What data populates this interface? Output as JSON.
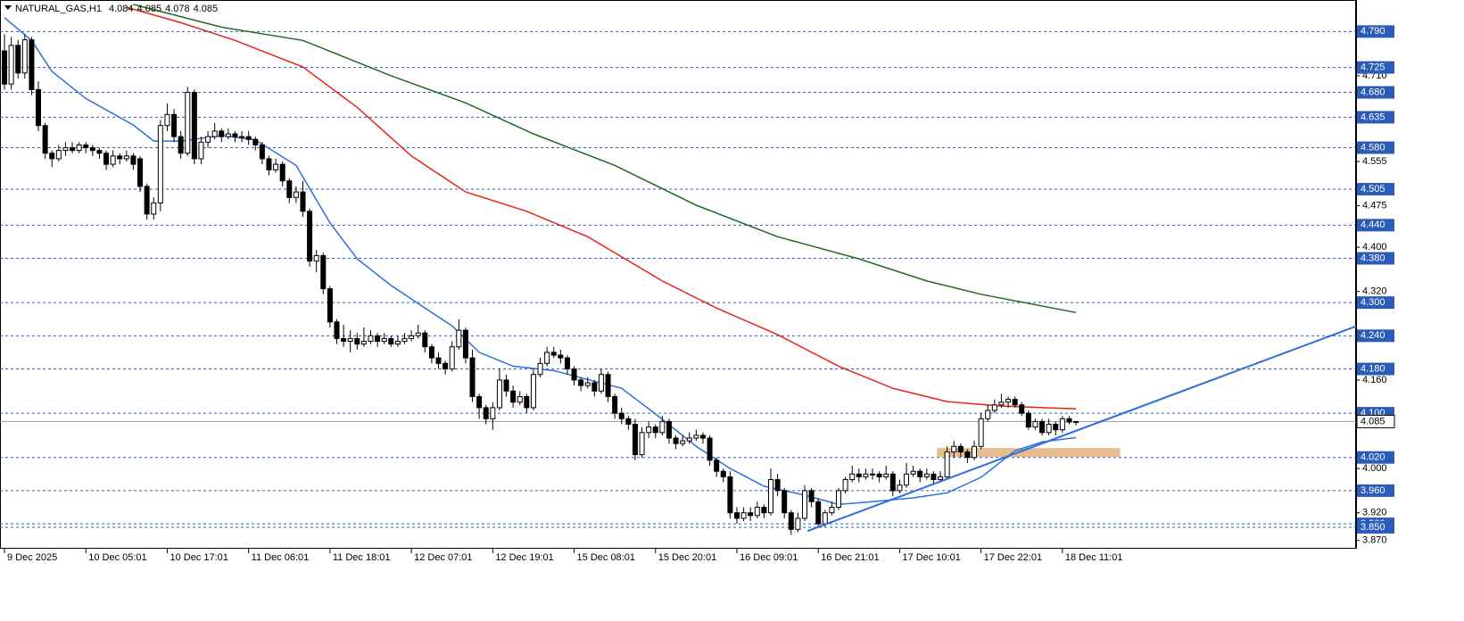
{
  "chart_data": {
    "type": "candlestick",
    "title": "NATURAL_GAS,H1",
    "up_color": "#ffffff",
    "down_color": "#000000",
    "level_color": "#2b5cb8",
    "xlim": [
      -0.66,
      199.3
    ],
    "ylim": [
      3.855,
      4.847
    ],
    "xticks": [
      {
        "value": 0,
        "label": "9 Dec 2025"
      },
      {
        "value": 12,
        "label": "10 Dec 05:01"
      },
      {
        "value": 24,
        "label": "10 Dec 17:01"
      },
      {
        "value": 36,
        "label": "11 Dec 06:01"
      },
      {
        "value": 48,
        "label": "11 Dec 18:01"
      },
      {
        "value": 60,
        "label": "12 Dec 07:01"
      },
      {
        "value": 72,
        "label": "12 Dec 19:01"
      },
      {
        "value": 84,
        "label": "15 Dec 08:01"
      },
      {
        "value": 96,
        "label": "15 Dec 20:01"
      },
      {
        "value": 108,
        "label": "16 Dec 09:01"
      },
      {
        "value": 120,
        "label": "16 Dec 21:01"
      },
      {
        "value": 132,
        "label": "17 Dec 10:01"
      },
      {
        "value": 144,
        "label": "17 Dec 22:01"
      },
      {
        "value": 156,
        "label": "18 Dec 11:01"
      }
    ],
    "yticks": [
      {
        "value": 4.71,
        "label": "4.710"
      },
      4.555,
      4.475,
      {
        "value": 4.4,
        "label": "4.400"
      },
      {
        "value": 4.32,
        "label": "4.320"
      },
      {
        "value": 4.16,
        "label": "4.160"
      },
      {
        "value": 4,
        "label": "4.000"
      },
      {
        "value": 3.92,
        "label": "3.920"
      },
      {
        "value": 3.87,
        "label": "3.870"
      }
    ],
    "levels": [
      {
        "value": 4.79,
        "label": "4.790"
      },
      4.725,
      {
        "value": 4.68,
        "label": "4.680"
      },
      4.635,
      {
        "value": 4.58,
        "label": "4.580"
      },
      4.505,
      {
        "value": 4.44,
        "label": "4.440"
      },
      {
        "value": 4.38,
        "label": "4.380"
      },
      {
        "value": 4.3,
        "label": "4.300"
      },
      {
        "value": 4.24,
        "label": "4.240"
      },
      {
        "value": 4.18,
        "label": "4.180"
      },
      {
        "value": 4.1,
        "label": "4.100"
      },
      {
        "value": 4.02,
        "label": "4.020"
      },
      {
        "value": 3.96,
        "label": "3.960"
      },
      {
        "value": 3.9,
        "label": "3.900"
      },
      {
        "value": 3.85,
        "label": "3.850"
      }
    ],
    "candles": [
      [
        4.755,
        4.785,
        4.685,
        4.695
      ],
      [
        4.695,
        4.78,
        4.685,
        4.765
      ],
      [
        4.765,
        4.775,
        4.705,
        4.715
      ],
      [
        4.715,
        4.785,
        4.705,
        4.775
      ],
      [
        4.775,
        4.78,
        4.675,
        4.685
      ],
      [
        4.685,
        4.7,
        4.61,
        4.62
      ],
      [
        4.62,
        4.625,
        4.56,
        4.57
      ],
      [
        4.57,
        4.575,
        4.545,
        4.56
      ],
      [
        4.56,
        4.585,
        4.555,
        4.575
      ],
      [
        4.575,
        4.59,
        4.565,
        4.58
      ],
      [
        4.58,
        4.59,
        4.57,
        4.575
      ],
      [
        4.575,
        4.59,
        4.57,
        4.585
      ],
      [
        4.585,
        4.59,
        4.57,
        4.58
      ],
      [
        4.58,
        4.585,
        4.565,
        4.575
      ],
      [
        4.575,
        4.58,
        4.56,
        4.57
      ],
      [
        4.57,
        4.575,
        4.54,
        4.55
      ],
      [
        4.55,
        4.575,
        4.545,
        4.565
      ],
      [
        4.565,
        4.57,
        4.55,
        4.56
      ],
      [
        4.56,
        4.575,
        4.555,
        4.565
      ],
      [
        4.565,
        4.57,
        4.54,
        4.55
      ],
      [
        4.56,
        4.565,
        4.5,
        4.51
      ],
      [
        4.51,
        4.515,
        4.45,
        4.46
      ],
      [
        4.46,
        4.49,
        4.45,
        4.48
      ],
      [
        4.48,
        4.63,
        4.465,
        4.62
      ],
      [
        4.62,
        4.66,
        4.61,
        4.64
      ],
      [
        4.64,
        4.65,
        4.59,
        4.6
      ],
      [
        4.6,
        4.61,
        4.56,
        4.57
      ],
      [
        4.57,
        4.69,
        4.565,
        4.68
      ],
      [
        4.68,
        4.685,
        4.55,
        4.56
      ],
      [
        4.56,
        4.6,
        4.55,
        4.59
      ],
      [
        4.59,
        4.61,
        4.58,
        4.6
      ],
      [
        4.6,
        4.625,
        4.595,
        4.61
      ],
      [
        4.61,
        4.615,
        4.59,
        4.6
      ],
      [
        4.6,
        4.615,
        4.595,
        4.605
      ],
      [
        4.605,
        4.61,
        4.59,
        4.6
      ],
      [
        4.6,
        4.61,
        4.59,
        4.6
      ],
      [
        4.6,
        4.61,
        4.585,
        4.595
      ],
      [
        4.595,
        4.6,
        4.575,
        4.585
      ],
      [
        4.585,
        4.59,
        4.55,
        4.56
      ],
      [
        4.56,
        4.565,
        4.53,
        4.54
      ],
      [
        4.54,
        4.56,
        4.535,
        4.55
      ],
      [
        4.55,
        4.555,
        4.51,
        4.52
      ],
      [
        4.52,
        4.525,
        4.48,
        4.49
      ],
      [
        4.49,
        4.51,
        4.48,
        4.5
      ],
      [
        4.5,
        4.52,
        4.455,
        4.465
      ],
      [
        4.465,
        4.47,
        4.365,
        4.375
      ],
      [
        4.375,
        4.395,
        4.355,
        4.385
      ],
      [
        4.385,
        4.39,
        4.315,
        4.325
      ],
      [
        4.325,
        4.33,
        4.255,
        4.265
      ],
      [
        4.265,
        4.27,
        4.225,
        4.235
      ],
      [
        4.235,
        4.26,
        4.22,
        4.23
      ],
      [
        4.23,
        4.25,
        4.21,
        4.235
      ],
      [
        4.235,
        4.245,
        4.215,
        4.225
      ],
      [
        4.225,
        4.255,
        4.22,
        4.23
      ],
      [
        4.23,
        4.25,
        4.225,
        4.24
      ],
      [
        4.24,
        4.245,
        4.22,
        4.23
      ],
      [
        4.23,
        4.245,
        4.225,
        4.235
      ],
      [
        4.235,
        4.24,
        4.22,
        4.225
      ],
      [
        4.225,
        4.24,
        4.22,
        4.23
      ],
      [
        4.23,
        4.245,
        4.225,
        4.235
      ],
      [
        4.235,
        4.25,
        4.23,
        4.24
      ],
      [
        4.24,
        4.26,
        4.235,
        4.245
      ],
      [
        4.245,
        4.25,
        4.21,
        4.22
      ],
      [
        4.22,
        4.225,
        4.19,
        4.2
      ],
      [
        4.2,
        4.21,
        4.18,
        4.19
      ],
      [
        4.19,
        4.195,
        4.17,
        4.18
      ],
      [
        4.18,
        4.23,
        4.175,
        4.22
      ],
      [
        4.22,
        4.27,
        4.215,
        4.25
      ],
      [
        4.25,
        4.255,
        4.19,
        4.2
      ],
      [
        4.2,
        4.215,
        4.12,
        4.13
      ],
      [
        4.13,
        4.135,
        4.09,
        4.11
      ],
      [
        4.11,
        4.115,
        4.08,
        4.09
      ],
      [
        4.09,
        4.12,
        4.07,
        4.11
      ],
      [
        4.11,
        4.18,
        4.105,
        4.16
      ],
      [
        4.16,
        4.17,
        4.13,
        4.14
      ],
      [
        4.14,
        4.15,
        4.11,
        4.12
      ],
      [
        4.12,
        4.14,
        4.115,
        4.13
      ],
      [
        4.13,
        4.135,
        4.1,
        4.11
      ],
      [
        4.11,
        4.18,
        4.105,
        4.17
      ],
      [
        4.17,
        4.2,
        4.165,
        4.19
      ],
      [
        4.19,
        4.22,
        4.185,
        4.21
      ],
      [
        4.21,
        4.22,
        4.2,
        4.205
      ],
      [
        4.205,
        4.215,
        4.19,
        4.2
      ],
      [
        4.2,
        4.205,
        4.17,
        4.18
      ],
      [
        4.18,
        4.185,
        4.15,
        4.16
      ],
      [
        4.16,
        4.165,
        4.14,
        4.15
      ],
      [
        4.15,
        4.165,
        4.145,
        4.155
      ],
      [
        4.155,
        4.16,
        4.13,
        4.14
      ],
      [
        4.14,
        4.18,
        4.135,
        4.17
      ],
      [
        4.17,
        4.175,
        4.12,
        4.13
      ],
      [
        4.13,
        4.135,
        4.09,
        4.1
      ],
      [
        4.1,
        4.11,
        4.08,
        4.09
      ],
      [
        4.09,
        4.095,
        4.07,
        4.08
      ],
      [
        4.08,
        4.09,
        4.015,
        4.025
      ],
      [
        4.025,
        4.075,
        4.02,
        4.065
      ],
      [
        4.065,
        4.085,
        4.055,
        4.075
      ],
      [
        4.075,
        4.08,
        4.055,
        4.065
      ],
      [
        4.065,
        4.095,
        4.06,
        4.085
      ],
      [
        4.085,
        4.09,
        4.045,
        4.055
      ],
      [
        4.055,
        4.06,
        4.035,
        4.045
      ],
      [
        4.045,
        4.06,
        4.04,
        4.05
      ],
      [
        4.05,
        4.065,
        4.045,
        4.055
      ],
      [
        4.055,
        4.07,
        4.05,
        4.06
      ],
      [
        4.06,
        4.065,
        4.045,
        4.055
      ],
      [
        4.055,
        4.06,
        4.005,
        4.015
      ],
      [
        4.015,
        4.02,
        3.985,
        3.995
      ],
      [
        3.995,
        4.0,
        3.975,
        3.985
      ],
      [
        3.985,
        3.995,
        3.91,
        3.92
      ],
      [
        3.92,
        3.93,
        3.9,
        3.91
      ],
      [
        3.91,
        3.93,
        3.905,
        3.92
      ],
      [
        3.92,
        3.93,
        3.905,
        3.915
      ],
      [
        3.915,
        3.94,
        3.91,
        3.93
      ],
      [
        3.93,
        3.935,
        3.91,
        3.92
      ],
      [
        3.92,
        4.0,
        3.915,
        3.98
      ],
      [
        3.98,
        3.99,
        3.95,
        3.96
      ],
      [
        3.96,
        3.965,
        3.91,
        3.92
      ],
      [
        3.92,
        3.925,
        3.88,
        3.89
      ],
      [
        3.89,
        3.92,
        3.885,
        3.91
      ],
      [
        3.91,
        3.97,
        3.905,
        3.96
      ],
      [
        3.96,
        3.965,
        3.93,
        3.94
      ],
      [
        3.94,
        3.945,
        3.895,
        3.9
      ],
      [
        3.9,
        3.925,
        3.895,
        3.92
      ],
      [
        3.92,
        3.94,
        3.915,
        3.93
      ],
      [
        3.93,
        3.965,
        3.925,
        3.96
      ],
      [
        3.96,
        3.985,
        3.955,
        3.98
      ],
      [
        3.98,
        4.005,
        3.975,
        3.99
      ],
      [
        3.99,
        4.0,
        3.975,
        3.985
      ],
      [
        3.985,
        4.0,
        3.98,
        3.99
      ],
      [
        3.99,
        4.0,
        3.98,
        3.99
      ],
      [
        3.99,
        3.995,
        3.975,
        3.985
      ],
      [
        3.985,
        4.005,
        3.98,
        3.99
      ],
      [
        3.99,
        3.995,
        3.95,
        3.96
      ],
      [
        3.96,
        3.98,
        3.955,
        3.97
      ],
      [
        3.97,
        4.01,
        3.965,
        3.99
      ],
      [
        3.99,
        4.005,
        3.985,
        3.995
      ],
      [
        3.995,
        4.0,
        3.975,
        3.985
      ],
      [
        3.985,
        4.0,
        3.98,
        3.99
      ],
      [
        3.99,
        3.995,
        3.97,
        3.98
      ],
      [
        3.98,
        3.995,
        3.975,
        3.985
      ],
      [
        3.985,
        4.04,
        3.98,
        4.03
      ],
      [
        4.03,
        4.05,
        4.02,
        4.04
      ],
      [
        4.04,
        4.045,
        4.02,
        4.03
      ],
      [
        4.03,
        4.035,
        4.01,
        4.02
      ],
      [
        4.02,
        4.05,
        4.015,
        4.04
      ],
      [
        4.04,
        4.1,
        4.035,
        4.09
      ],
      [
        4.09,
        4.115,
        4.085,
        4.105
      ],
      [
        4.105,
        4.125,
        4.1,
        4.115
      ],
      [
        4.115,
        4.135,
        4.11,
        4.12
      ],
      [
        4.12,
        4.13,
        4.11,
        4.125
      ],
      [
        4.125,
        4.13,
        4.11,
        4.115
      ],
      [
        4.115,
        4.12,
        4.095,
        4.1
      ],
      [
        4.1,
        4.105,
        4.07,
        4.075
      ],
      [
        4.075,
        4.09,
        4.07,
        4.085
      ],
      [
        4.085,
        4.09,
        4.06,
        4.065
      ],
      [
        4.065,
        4.09,
        4.06,
        4.08
      ],
      [
        4.08,
        4.085,
        4.06,
        4.07
      ],
      [
        4.07,
        4.095,
        4.065,
        4.09
      ],
      [
        4.09,
        4.095,
        4.08,
        4.084
      ],
      [
        4.084,
        4.085,
        4.078,
        4.085
      ]
    ],
    "moving_averages": [
      {
        "color": "#2f6fdc",
        "x": [
          0,
          4,
          7,
          12,
          19,
          22,
          26,
          32,
          37,
          43,
          48,
          52,
          57,
          62,
          66,
          70,
          75,
          81,
          86,
          91,
          97,
          102,
          107,
          112,
          118,
          123,
          128,
          134,
          139,
          144,
          149,
          153,
          158
        ],
        "values": [
          4.815,
          4.774,
          4.718,
          4.669,
          4.621,
          4.592,
          4.592,
          4.602,
          4.594,
          4.548,
          4.444,
          4.379,
          4.331,
          4.29,
          4.258,
          4.21,
          4.185,
          4.177,
          4.161,
          4.145,
          4.089,
          4.04,
          4.0,
          3.968,
          3.952,
          3.935,
          3.94,
          3.947,
          3.956,
          3.984,
          4.032,
          4.048,
          4.056
        ]
      },
      {
        "color": "#e8231a",
        "x": [
          18,
          26,
          34,
          44,
          52,
          60,
          68,
          77,
          86,
          97,
          105,
          114,
          123,
          131,
          139,
          147,
          158
        ],
        "values": [
          4.834,
          4.806,
          4.774,
          4.726,
          4.653,
          4.565,
          4.5,
          4.465,
          4.419,
          4.339,
          4.29,
          4.242,
          4.185,
          4.145,
          4.121,
          4.113,
          4.108
        ]
      },
      {
        "color": "#1f6b1f",
        "x": [
          19,
          32,
          44,
          57,
          68,
          78,
          90,
          102,
          114,
          126,
          136,
          144,
          158
        ],
        "values": [
          4.839,
          4.798,
          4.774,
          4.71,
          4.661,
          4.605,
          4.548,
          4.476,
          4.419,
          4.379,
          4.339,
          4.315,
          4.282
        ]
      }
    ],
    "trendline": {
      "color": "#2f6fdc",
      "x": [
        118.4,
        199.5
      ],
      "values": [
        3.887,
        4.258
      ]
    },
    "zone": {
      "color": "#e0b27a",
      "x": [
        137.5,
        164.5
      ],
      "values": [
        4.021,
        4.037
      ]
    }
  }
}
